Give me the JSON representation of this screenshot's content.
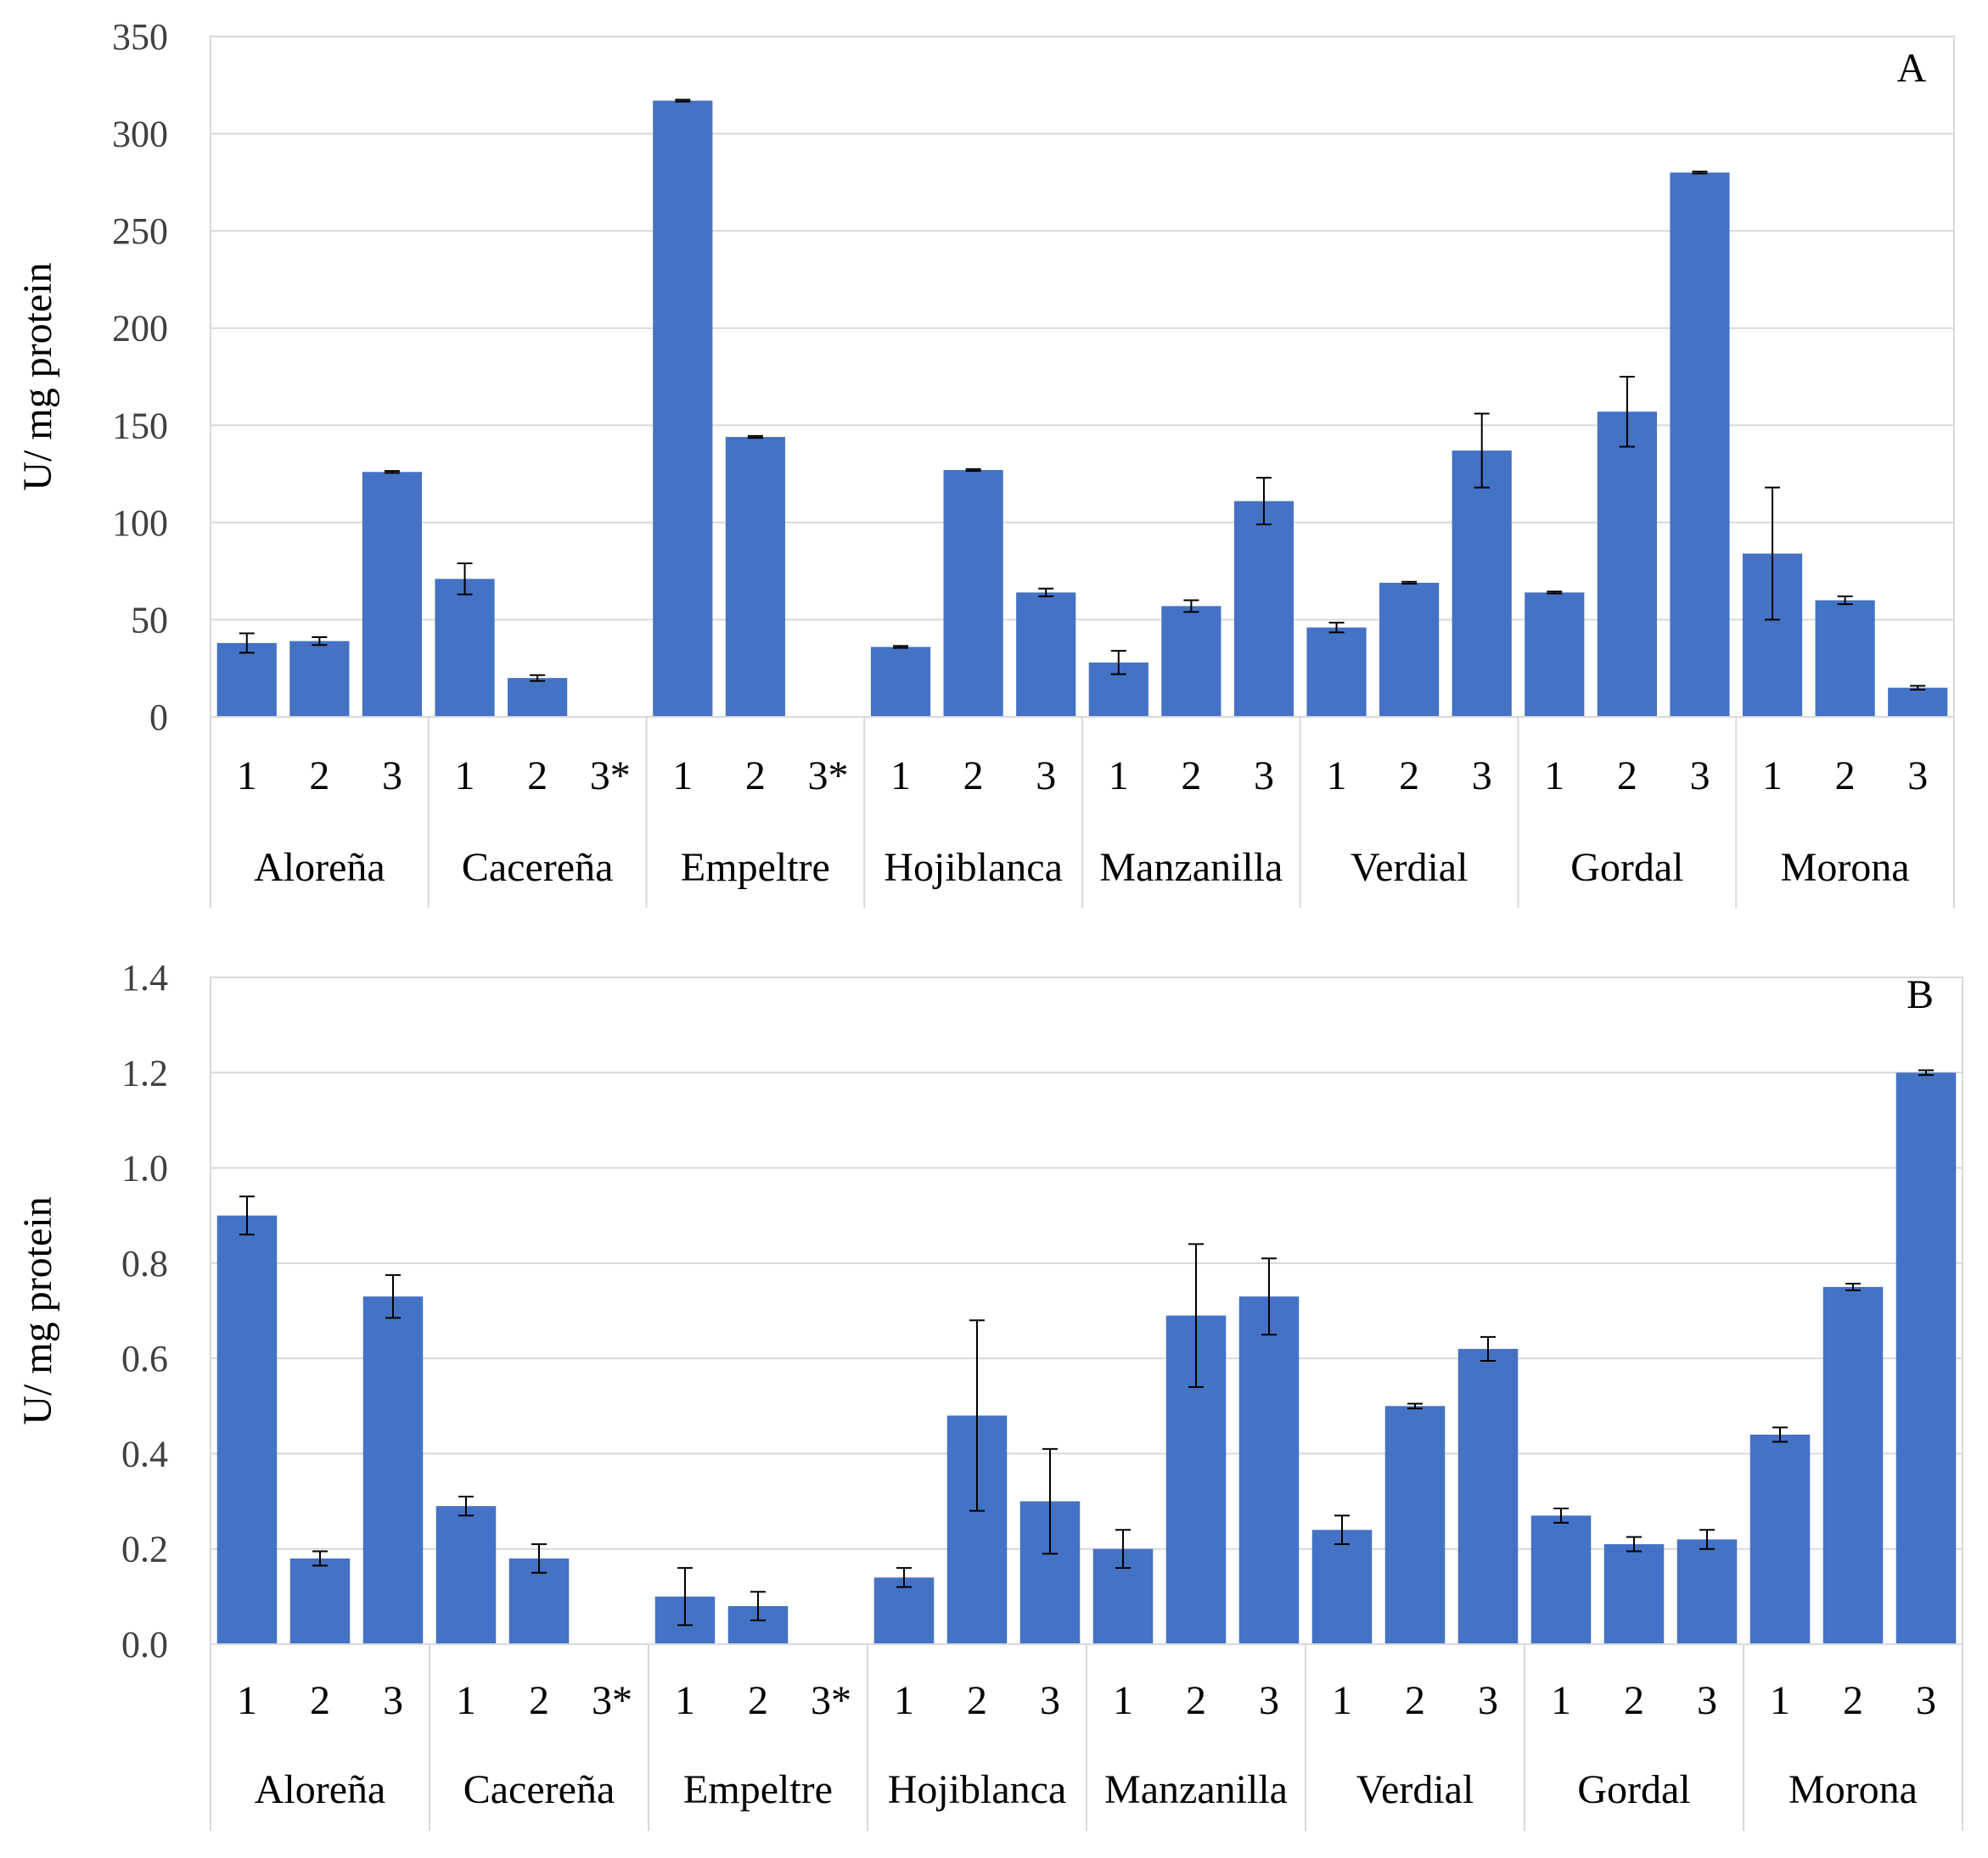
{
  "chart_data": [
    {
      "type": "bar",
      "panel_label": "A",
      "ylabel": "U/ mg protein",
      "ylim": [
        0,
        350
      ],
      "yticks": [
        0,
        50,
        100,
        150,
        200,
        250,
        300,
        350
      ],
      "ytick_labels": [
        "0",
        "50",
        "100",
        "150",
        "200",
        "250",
        "300",
        "350"
      ],
      "bar_color": "#4472c4",
      "grid": true,
      "groups": [
        {
          "name": "Aloreña",
          "bars": [
            {
              "label": "1",
              "value": 38,
              "error": 5
            },
            {
              "label": "2",
              "value": 39,
              "error": 2
            },
            {
              "label": "3",
              "value": 126,
              "error": 0.5
            }
          ]
        },
        {
          "name": "Cacereña",
          "bars": [
            {
              "label": "1",
              "value": 71,
              "error": 8
            },
            {
              "label": "2",
              "value": 20,
              "error": 1.5
            },
            {
              "label": "3*",
              "value": null,
              "error": null
            }
          ]
        },
        {
          "name": "Empeltre",
          "bars": [
            {
              "label": "1",
              "value": 317,
              "error": 0.5
            },
            {
              "label": "2",
              "value": 144,
              "error": 0.5
            },
            {
              "label": "3*",
              "value": null,
              "error": null
            }
          ]
        },
        {
          "name": "Hojiblanca",
          "bars": [
            {
              "label": "1",
              "value": 36,
              "error": 0.5
            },
            {
              "label": "2",
              "value": 127,
              "error": 0.5
            },
            {
              "label": "3",
              "value": 64,
              "error": 2
            }
          ]
        },
        {
          "name": "Manzanilla",
          "bars": [
            {
              "label": "1",
              "value": 28,
              "error": 6
            },
            {
              "label": "2",
              "value": 57,
              "error": 3
            },
            {
              "label": "3",
              "value": 111,
              "error": 12
            }
          ]
        },
        {
          "name": "Verdial",
          "bars": [
            {
              "label": "1",
              "value": 46,
              "error": 2.5
            },
            {
              "label": "2",
              "value": 69,
              "error": 0.5
            },
            {
              "label": "3",
              "value": 137,
              "error": 19
            }
          ]
        },
        {
          "name": "Gordal",
          "bars": [
            {
              "label": "1",
              "value": 64,
              "error": 0.5
            },
            {
              "label": "2",
              "value": 157,
              "error": 18
            },
            {
              "label": "3",
              "value": 280,
              "error": 0.5
            }
          ]
        },
        {
          "name": "Morona",
          "bars": [
            {
              "label": "1",
              "value": 84,
              "error": 34
            },
            {
              "label": "2",
              "value": 60,
              "error": 2
            },
            {
              "label": "3",
              "value": 15,
              "error": 1
            }
          ]
        }
      ]
    },
    {
      "type": "bar",
      "panel_label": "B",
      "ylabel": "U/ mg protein",
      "ylim": [
        0,
        1.4
      ],
      "yticks": [
        0,
        0.2,
        0.4,
        0.6,
        0.8,
        1.0,
        1.2,
        1.4
      ],
      "ytick_labels": [
        "0.0",
        "0.2",
        "0.4",
        "0.6",
        "0.8",
        "1.0",
        "1.2",
        "1.4"
      ],
      "bar_color": "#4472c4",
      "grid": true,
      "groups": [
        {
          "name": "Aloreña",
          "bars": [
            {
              "label": "1",
              "value": 0.9,
              "error": 0.04
            },
            {
              "label": "2",
              "value": 0.18,
              "error": 0.015
            },
            {
              "label": "3",
              "value": 0.73,
              "error": 0.045
            }
          ]
        },
        {
          "name": "Cacereña",
          "bars": [
            {
              "label": "1",
              "value": 0.29,
              "error": 0.02
            },
            {
              "label": "2",
              "value": 0.18,
              "error": 0.03
            },
            {
              "label": "3*",
              "value": null,
              "error": null
            }
          ]
        },
        {
          "name": "Empeltre",
          "bars": [
            {
              "label": "1",
              "value": 0.1,
              "error": 0.06
            },
            {
              "label": "2",
              "value": 0.08,
              "error": 0.03
            },
            {
              "label": "3*",
              "value": null,
              "error": null
            }
          ]
        },
        {
          "name": "Hojiblanca",
          "bars": [
            {
              "label": "1",
              "value": 0.14,
              "error": 0.02
            },
            {
              "label": "2",
              "value": 0.48,
              "error": 0.2
            },
            {
              "label": "3",
              "value": 0.3,
              "error": 0.11
            }
          ]
        },
        {
          "name": "Manzanilla",
          "bars": [
            {
              "label": "1",
              "value": 0.2,
              "error": 0.04
            },
            {
              "label": "2",
              "value": 0.69,
              "error": 0.15
            },
            {
              "label": "3",
              "value": 0.73,
              "error": 0.08
            }
          ]
        },
        {
          "name": "Verdial",
          "bars": [
            {
              "label": "1",
              "value": 0.24,
              "error": 0.03
            },
            {
              "label": "2",
              "value": 0.5,
              "error": 0.005
            },
            {
              "label": "3",
              "value": 0.62,
              "error": 0.025
            }
          ]
        },
        {
          "name": "Gordal",
          "bars": [
            {
              "label": "1",
              "value": 0.27,
              "error": 0.015
            },
            {
              "label": "2",
              "value": 0.21,
              "error": 0.015
            },
            {
              "label": "3",
              "value": 0.22,
              "error": 0.02
            }
          ]
        },
        {
          "name": "Morona",
          "bars": [
            {
              "label": "1",
              "value": 0.44,
              "error": 0.015
            },
            {
              "label": "2",
              "value": 0.75,
              "error": 0.007
            },
            {
              "label": "3",
              "value": 1.2,
              "error": 0.005
            }
          ]
        }
      ]
    }
  ]
}
